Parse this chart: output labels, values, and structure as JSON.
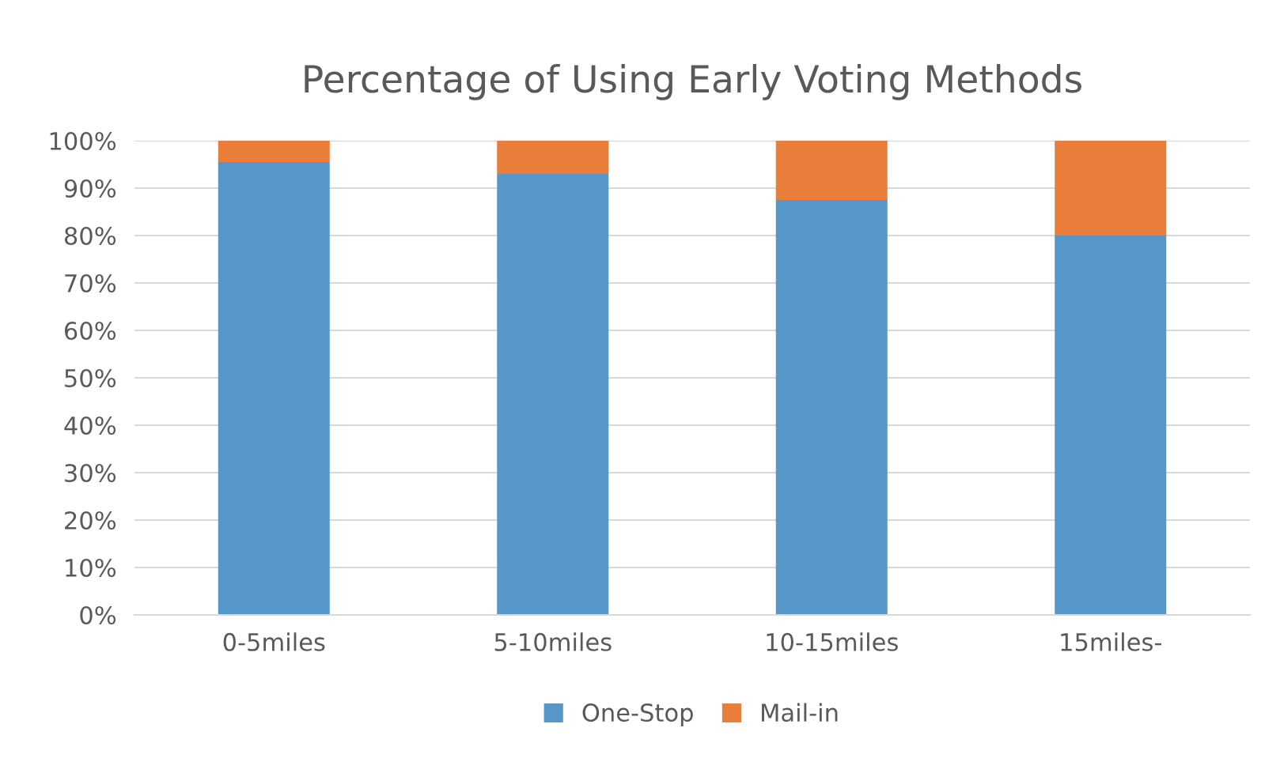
{
  "chart_data": {
    "type": "bar",
    "stacked": true,
    "title": "Percentage of Using Early Voting Methods",
    "categories": [
      "0-5miles",
      "5-10miles",
      "10-15miles",
      "15miles-"
    ],
    "series": [
      {
        "name": "One-Stop",
        "color": "#5597c8",
        "values": [
          95.5,
          93,
          87.5,
          80
        ]
      },
      {
        "name": "Mail-in",
        "color": "#e97e3b",
        "values": [
          4.5,
          7,
          12.5,
          20
        ]
      }
    ],
    "ylim": [
      0,
      100
    ],
    "yticks": [
      {
        "value": 0,
        "label": "0%"
      },
      {
        "value": 10,
        "label": "10%"
      },
      {
        "value": 20,
        "label": "20%"
      },
      {
        "value": 30,
        "label": "30%"
      },
      {
        "value": 40,
        "label": "40%"
      },
      {
        "value": 50,
        "label": "50%"
      },
      {
        "value": 60,
        "label": "60%"
      },
      {
        "value": 70,
        "label": "70%"
      },
      {
        "value": 80,
        "label": "80%"
      },
      {
        "value": 90,
        "label": "90%"
      },
      {
        "value": 100,
        "label": "100%"
      }
    ],
    "grid": "y",
    "legend": "bottom"
  }
}
